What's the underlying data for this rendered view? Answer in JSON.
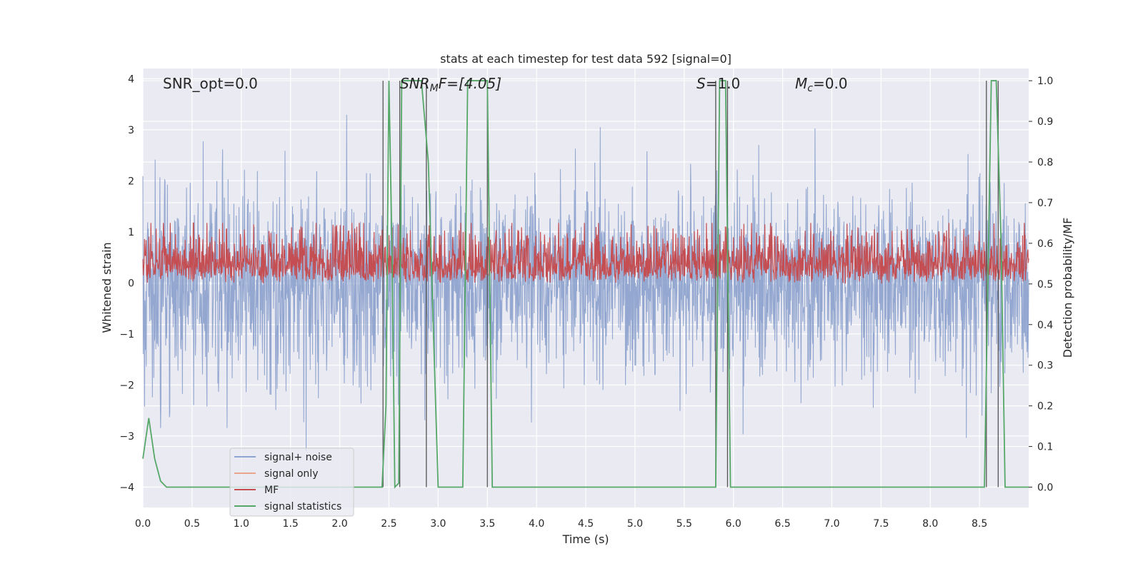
{
  "chart_data": {
    "type": "line",
    "title": "stats at each timestep for test data 592 [signal=0]",
    "xlabel": "Time (s)",
    "ylabel": "Whitened strain",
    "ylabel_right": "Detection probability/MF",
    "xlim": [
      0.0,
      9.0
    ],
    "ylim": [
      -4.4,
      4.2
    ],
    "ylim_right": [
      -0.05,
      1.03
    ],
    "x_ticks": [
      "0.0",
      "0.5",
      "1.0",
      "1.5",
      "2.0",
      "2.5",
      "3.0",
      "3.5",
      "4.0",
      "4.5",
      "5.0",
      "5.5",
      "6.0",
      "6.5",
      "7.0",
      "7.5",
      "8.0",
      "8.5"
    ],
    "y_ticks": [
      "4",
      "3",
      "2",
      "1",
      "0",
      "−1",
      "−2",
      "−3",
      "−4"
    ],
    "y_ticks_right": [
      "1.0",
      "0.9",
      "0.8",
      "0.7",
      "0.6",
      "0.5",
      "0.4",
      "0.3",
      "0.2",
      "0.1",
      "0.0"
    ],
    "grid": true,
    "legend_position": "lower-left",
    "annotations": {
      "snr_opt": "SNR_opt=0.0",
      "snr_mf_main": "SNR",
      "snr_mf_sub": "M",
      "snr_mf_rest": "F=[4.05]",
      "s_main": "S",
      "s_rest": "=1.0",
      "mc_main": "M",
      "mc_sub": "c",
      "mc_rest": "=0.0"
    },
    "series": [
      {
        "name": "signal+ noise",
        "color": "#8ea3cd",
        "axis": "left",
        "description": "whitened strain noise, amplitude roughly within ±2 with spikes up to about ±3.6",
        "amplitude_typical": 1.5,
        "amplitude_max": 3.6
      },
      {
        "name": "signal only",
        "color": "#e9a68c",
        "axis": "left",
        "values_constant": 0.0
      },
      {
        "name": "MF",
        "color": "#c44e52",
        "axis": "right",
        "range": [
          0.5,
          0.63
        ]
      },
      {
        "name": "signal statistics",
        "color": "#55a868",
        "axis": "right",
        "x": [
          0.0,
          0.06,
          0.12,
          0.18,
          0.24,
          2.43,
          2.47,
          2.5,
          2.53,
          2.56,
          2.6,
          2.63,
          2.66,
          2.83,
          2.9,
          3.0,
          3.25,
          3.3,
          3.5,
          3.55,
          5.82,
          5.86,
          5.92,
          5.97,
          8.55,
          8.62,
          8.67,
          8.72,
          8.76,
          9.0
        ],
        "values": [
          0.07,
          0.17,
          0.07,
          0.015,
          0.0,
          0.0,
          0.2,
          1.0,
          0.6,
          0.0,
          0.01,
          1.0,
          1.0,
          1.0,
          0.8,
          0.0,
          0.0,
          1.0,
          1.0,
          0.0,
          0.0,
          1.0,
          1.0,
          0.0,
          0.0,
          1.0,
          1.0,
          0.6,
          0.0,
          0.0
        ]
      }
    ],
    "vertical_lines_x": [
      2.44,
      2.61,
      2.88,
      3.5,
      5.82,
      5.94,
      8.57,
      8.69
    ],
    "vertical_lines_color": "#555555"
  }
}
